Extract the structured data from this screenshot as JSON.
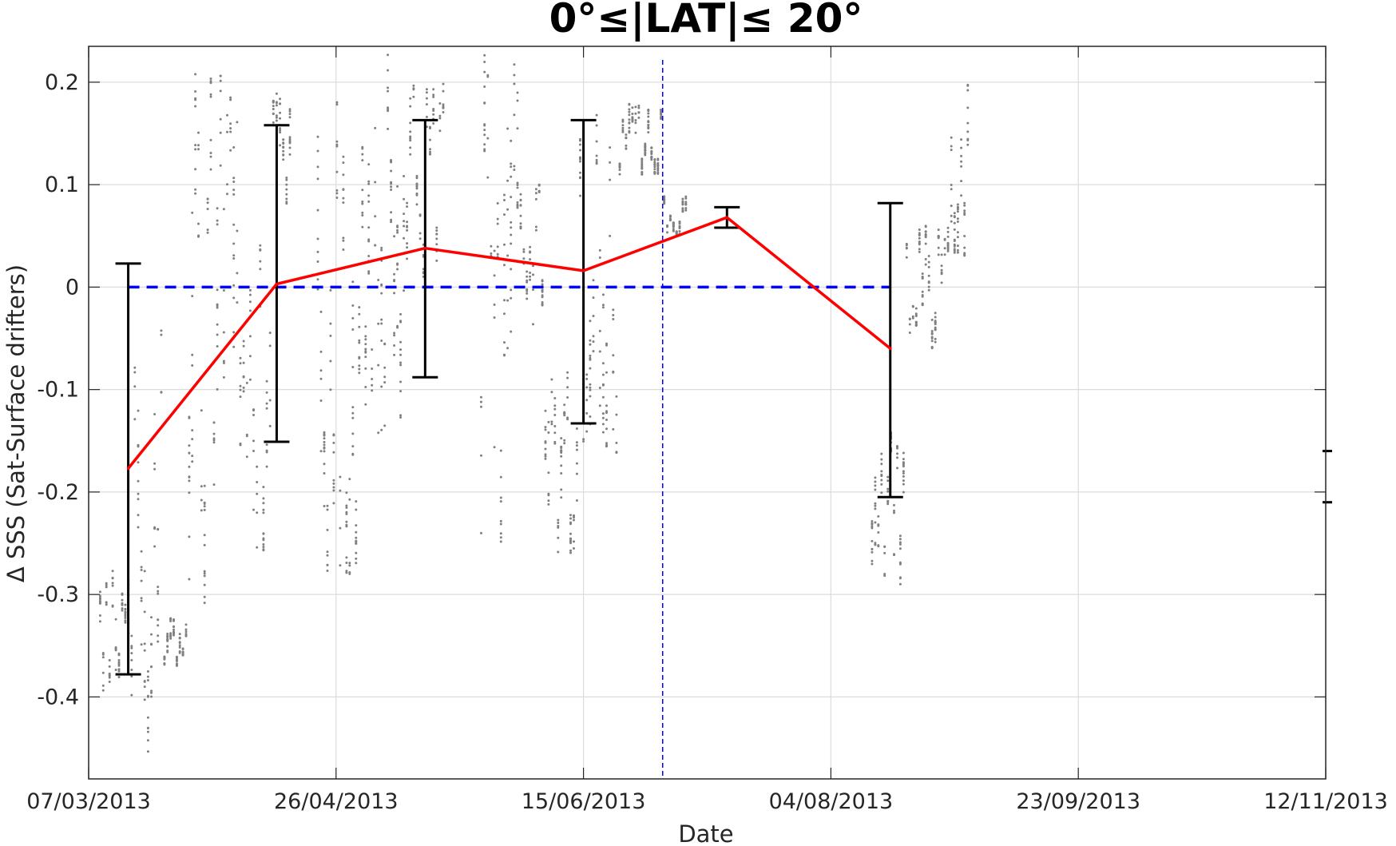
{
  "chart_data": {
    "type": "line",
    "title": "0°≤|LAT|≤ 20°",
    "xlabel": "Date",
    "ylabel": "Δ SSS (Sat-Surface drifters)",
    "x_range": [
      "07/03/2013",
      "12/11/2013"
    ],
    "ylim": [
      -0.48,
      0.235
    ],
    "x_ticks": [
      "07/03/2013",
      "26/04/2013",
      "15/06/2013",
      "04/08/2013",
      "23/09/2013",
      "12/11/2013"
    ],
    "y_ticks": [
      -0.4,
      -0.3,
      -0.2,
      -0.1,
      0,
      0.1,
      0.2
    ],
    "y_tick_labels": [
      "-0.4",
      "-0.3",
      "-0.2",
      "-0.1",
      "0",
      "0.1",
      "0.2"
    ],
    "grid": true,
    "series": [
      {
        "style": "red solid line with black error bars",
        "color": "#ff0000",
        "points": [
          {
            "x": "2013-03-15",
            "y": -0.177,
            "err_low": -0.378,
            "err_high": 0.023
          },
          {
            "x": "2013-04-14",
            "y": 0.003,
            "err_low": -0.151,
            "err_high": 0.158
          },
          {
            "x": "2013-05-14",
            "y": 0.038,
            "err_low": -0.088,
            "err_high": 0.163
          },
          {
            "x": "2013-06-15",
            "y": 0.016,
            "err_low": -0.133,
            "err_high": 0.163
          },
          {
            "x": "2013-07-14",
            "y": 0.068,
            "err_low": 0.058,
            "err_high": 0.078
          },
          {
            "x": "2013-08-16",
            "y": -0.06,
            "err_low": -0.205,
            "err_high": 0.082
          }
        ]
      },
      {
        "style": "blue dashed zero reference line",
        "color": "#0000ff",
        "x": [
          "2013-03-15",
          "2013-08-16"
        ],
        "y": [
          0,
          0
        ]
      },
      {
        "style": "blue thin dashed vertical marker",
        "color": "#0000ff",
        "x": "2013-07-01"
      },
      {
        "style": "grey scattered individual collocations (dots)",
        "color": "#808080",
        "clusters": [
          {
            "x_start": "2013-03-09",
            "x_end": "2013-03-16",
            "y_min": -0.4,
            "y_max": -0.27
          },
          {
            "x_start": "2013-03-16",
            "x_end": "2013-03-22",
            "y_min": -0.47,
            "y_max": -0.04
          },
          {
            "x_start": "2013-03-22",
            "x_end": "2013-03-27",
            "y_min": -0.37,
            "y_max": -0.32
          },
          {
            "x_start": "2013-03-27",
            "x_end": "2013-04-01",
            "y_min": -0.31,
            "y_max": 0.21
          },
          {
            "x_start": "2013-04-01",
            "x_end": "2013-04-07",
            "y_min": -0.3,
            "y_max": 0.21
          },
          {
            "x_start": "2013-04-07",
            "x_end": "2013-04-13",
            "y_min": -0.27,
            "y_max": 0.05
          },
          {
            "x_start": "2013-04-13",
            "x_end": "2013-04-17",
            "y_min": 0.08,
            "y_max": 0.19
          },
          {
            "x_start": "2013-04-22",
            "x_end": "2013-05-01",
            "y_min": -0.28,
            "y_max": 0.19
          },
          {
            "x_start": "2013-05-01",
            "x_end": "2013-05-10",
            "y_min": -0.15,
            "y_max": 0.23
          },
          {
            "x_start": "2013-05-10",
            "x_end": "2013-05-18",
            "y_min": 0.01,
            "y_max": 0.2
          },
          {
            "x_start": "2013-05-25",
            "x_end": "2013-06-02",
            "y_min": -0.26,
            "y_max": 0.23
          },
          {
            "x_start": "2013-06-02",
            "x_end": "2013-06-07",
            "y_min": -0.05,
            "y_max": 0.1
          },
          {
            "x_start": "2013-06-07",
            "x_end": "2013-06-14",
            "y_min": -0.26,
            "y_max": -0.08
          },
          {
            "x_start": "2013-06-14",
            "x_end": "2013-06-22",
            "y_min": -0.17,
            "y_max": 0.18
          },
          {
            "x_start": "2013-06-22",
            "x_end": "2013-07-01",
            "y_min": 0.11,
            "y_max": 0.18
          },
          {
            "x_start": "2013-07-01",
            "x_end": "2013-07-06",
            "y_min": 0.05,
            "y_max": 0.09
          },
          {
            "x_start": "2013-08-12",
            "x_end": "2013-08-19",
            "y_min": -0.29,
            "y_max": -0.14
          },
          {
            "x_start": "2013-08-19",
            "x_end": "2013-08-28",
            "y_min": -0.06,
            "y_max": 0.06
          },
          {
            "x_start": "2013-08-28",
            "x_end": "2013-09-01",
            "y_min": 0.03,
            "y_max": 0.2
          }
        ]
      }
    ],
    "off_axis_marks": {
      "y_high": -0.16,
      "y_low": -0.21,
      "side": "right edge"
    }
  }
}
